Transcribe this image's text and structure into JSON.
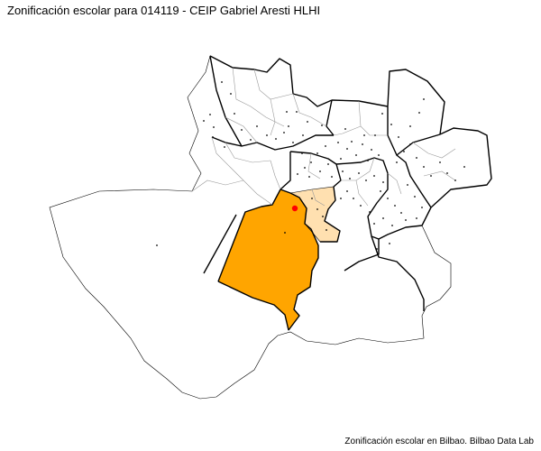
{
  "map": {
    "title": "Zonificación escolar para 014119 - CEIP Gabriel Aresti HLHI",
    "caption": "Zonificación escolar en Bilbao. Bilbao Data Lab",
    "colors": {
      "selected_zone": "#FFA500",
      "secondary_zone": "#FFE0B0",
      "school_marker": "#FF0000",
      "outline": "#000000",
      "minor_boundary": "#9a9a9a",
      "background": "#FFFFFF"
    },
    "school_marker_icon": "red-dot-icon"
  }
}
